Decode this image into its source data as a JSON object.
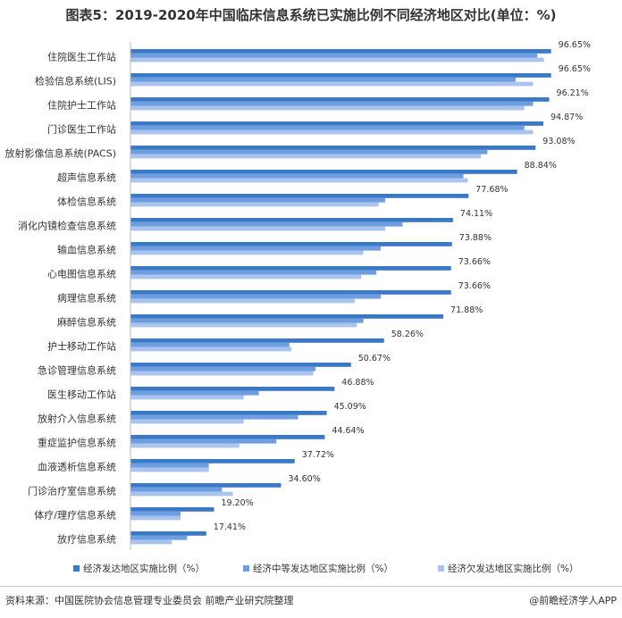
{
  "page": {
    "source": "资料来源：中国医院协会信息管理专业委员会 前瞻产业研究院整理",
    "credit": "@前瞻经济学人APP"
  },
  "chart_data": {
    "type": "bar",
    "orientation": "horizontal",
    "title": "图表5：2019-2020年中国临床信息系统已实施比例不同经济地区对比(单位：%)",
    "xlabel": "",
    "ylabel": "",
    "xlim": [
      0,
      100
    ],
    "grid": false,
    "legend_position": "bottom",
    "categories": [
      "住院医生工作站",
      "检验信息系统(LIS)",
      "住院护士工作站",
      "门诊医生工作站",
      "放射影像信息系统(PACS)",
      "超声信息系统",
      "体检信息系统",
      "消化内镜检查信息系统",
      "输血信息系统",
      "心电图信息系统",
      "病理信息系统",
      "麻醉信息系统",
      "护士移动工作站",
      "急诊管理信息系统",
      "医生移动工作站",
      "放射介入信息系统",
      "重症监护信息系统",
      "血液透析信息系统",
      "门诊治疗室信息系统",
      "体疗/理疗信息系统",
      "放疗信息系统"
    ],
    "series": [
      {
        "name": "经济发达地区实施比例（%）",
        "color": "#3a78c8",
        "values": [
          96.65,
          96.65,
          96.21,
          94.87,
          93.08,
          88.84,
          77.68,
          74.11,
          73.88,
          73.66,
          73.66,
          71.88,
          58.26,
          50.67,
          46.88,
          45.09,
          44.64,
          37.72,
          34.6,
          19.2,
          17.41
        ],
        "labels": [
          "96.65%",
          "96.65%",
          "96.21%",
          "94.87%",
          "93.08%",
          "88.84%",
          "77.68%",
          "74.11%",
          "73.88%",
          "73.66%",
          "73.66%",
          "71.88%",
          "58.26%",
          "50.67%",
          "46.88%",
          "45.09%",
          "44.64%",
          "37.72%",
          "34.60%",
          "19.20%",
          "17.41%"
        ]
      },
      {
        "name": "经济中等发达地区实施比例（%）",
        "color": "#6f9ee0",
        "values": [
          93.5,
          88.5,
          92.5,
          90.5,
          82.0,
          76.5,
          58.5,
          62.5,
          57.5,
          56.5,
          57.5,
          53.5,
          36.5,
          42.5,
          29.5,
          38.5,
          33.5,
          18.0,
          21.0,
          11.5,
          13.0
        ]
      },
      {
        "name": "经济欠发达地区实施比例（%）",
        "color": "#a9c4ef",
        "values": [
          95.0,
          92.5,
          90.5,
          92.5,
          80.5,
          77.5,
          57.0,
          58.5,
          53.5,
          53.0,
          51.5,
          52.0,
          37.0,
          42.0,
          26.0,
          26.0,
          25.0,
          18.0,
          23.5,
          11.5,
          9.5
        ]
      }
    ]
  }
}
